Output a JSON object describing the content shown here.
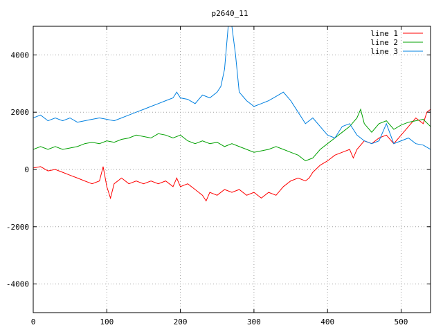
{
  "chart_data": {
    "type": "line",
    "title": "p2640_11",
    "xlabel": "",
    "ylabel": "",
    "xlim": [
      0,
      540
    ],
    "ylim": [
      -5000,
      5000
    ],
    "xticks": [
      0,
      100,
      200,
      300,
      400,
      500
    ],
    "yticks": [
      -4000,
      -2000,
      0,
      2000,
      4000
    ],
    "grid": true,
    "legend_position": "top-right",
    "series": [
      {
        "name": "line 1",
        "color": "#ff0000",
        "points": [
          [
            0,
            50
          ],
          [
            10,
            100
          ],
          [
            20,
            -50
          ],
          [
            30,
            0
          ],
          [
            40,
            -100
          ],
          [
            50,
            -200
          ],
          [
            60,
            -300
          ],
          [
            70,
            -400
          ],
          [
            80,
            -500
          ],
          [
            90,
            -400
          ],
          [
            95,
            100
          ],
          [
            100,
            -600
          ],
          [
            105,
            -1000
          ],
          [
            110,
            -500
          ],
          [
            120,
            -300
          ],
          [
            130,
            -500
          ],
          [
            140,
            -400
          ],
          [
            150,
            -500
          ],
          [
            160,
            -400
          ],
          [
            170,
            -500
          ],
          [
            180,
            -400
          ],
          [
            190,
            -600
          ],
          [
            195,
            -300
          ],
          [
            200,
            -600
          ],
          [
            210,
            -500
          ],
          [
            220,
            -700
          ],
          [
            230,
            -900
          ],
          [
            235,
            -1100
          ],
          [
            240,
            -800
          ],
          [
            250,
            -900
          ],
          [
            260,
            -700
          ],
          [
            270,
            -800
          ],
          [
            280,
            -700
          ],
          [
            290,
            -900
          ],
          [
            300,
            -800
          ],
          [
            310,
            -1000
          ],
          [
            320,
            -800
          ],
          [
            330,
            -900
          ],
          [
            340,
            -600
          ],
          [
            350,
            -400
          ],
          [
            360,
            -300
          ],
          [
            370,
            -400
          ],
          [
            375,
            -300
          ],
          [
            380,
            -100
          ],
          [
            390,
            150
          ],
          [
            400,
            300
          ],
          [
            410,
            500
          ],
          [
            420,
            600
          ],
          [
            430,
            700
          ],
          [
            435,
            400
          ],
          [
            440,
            700
          ],
          [
            450,
            1000
          ],
          [
            460,
            900
          ],
          [
            470,
            1100
          ],
          [
            480,
            1200
          ],
          [
            490,
            900
          ],
          [
            500,
            1200
          ],
          [
            510,
            1500
          ],
          [
            520,
            1800
          ],
          [
            530,
            1600
          ],
          [
            535,
            2000
          ],
          [
            540,
            2100
          ]
        ]
      },
      {
        "name": "line 2",
        "color": "#00a000",
        "points": [
          [
            0,
            700
          ],
          [
            10,
            800
          ],
          [
            20,
            700
          ],
          [
            30,
            800
          ],
          [
            40,
            700
          ],
          [
            50,
            750
          ],
          [
            60,
            800
          ],
          [
            70,
            900
          ],
          [
            80,
            950
          ],
          [
            90,
            900
          ],
          [
            100,
            1000
          ],
          [
            110,
            950
          ],
          [
            120,
            1050
          ],
          [
            130,
            1100
          ],
          [
            140,
            1200
          ],
          [
            150,
            1150
          ],
          [
            160,
            1100
          ],
          [
            170,
            1250
          ],
          [
            180,
            1200
          ],
          [
            190,
            1100
          ],
          [
            200,
            1200
          ],
          [
            210,
            1000
          ],
          [
            220,
            900
          ],
          [
            230,
            1000
          ],
          [
            240,
            900
          ],
          [
            250,
            950
          ],
          [
            260,
            800
          ],
          [
            270,
            900
          ],
          [
            280,
            800
          ],
          [
            290,
            700
          ],
          [
            300,
            600
          ],
          [
            310,
            650
          ],
          [
            320,
            700
          ],
          [
            330,
            800
          ],
          [
            340,
            700
          ],
          [
            350,
            600
          ],
          [
            360,
            500
          ],
          [
            370,
            300
          ],
          [
            380,
            400
          ],
          [
            390,
            700
          ],
          [
            400,
            900
          ],
          [
            410,
            1100
          ],
          [
            420,
            1300
          ],
          [
            430,
            1500
          ],
          [
            440,
            1800
          ],
          [
            445,
            2100
          ],
          [
            450,
            1600
          ],
          [
            460,
            1300
          ],
          [
            470,
            1600
          ],
          [
            480,
            1700
          ],
          [
            490,
            1400
          ],
          [
            500,
            1550
          ],
          [
            510,
            1650
          ],
          [
            520,
            1700
          ],
          [
            530,
            1750
          ],
          [
            540,
            1500
          ]
        ]
      },
      {
        "name": "line 3",
        "color": "#0080e0",
        "points": [
          [
            0,
            1800
          ],
          [
            10,
            1900
          ],
          [
            20,
            1700
          ],
          [
            30,
            1800
          ],
          [
            40,
            1700
          ],
          [
            50,
            1800
          ],
          [
            60,
            1650
          ],
          [
            70,
            1700
          ],
          [
            80,
            1750
          ],
          [
            90,
            1800
          ],
          [
            100,
            1750
          ],
          [
            110,
            1700
          ],
          [
            120,
            1800
          ],
          [
            130,
            1900
          ],
          [
            140,
            2000
          ],
          [
            150,
            2100
          ],
          [
            160,
            2200
          ],
          [
            170,
            2300
          ],
          [
            180,
            2400
          ],
          [
            190,
            2500
          ],
          [
            195,
            2700
          ],
          [
            200,
            2500
          ],
          [
            210,
            2450
          ],
          [
            220,
            2300
          ],
          [
            230,
            2600
          ],
          [
            240,
            2500
          ],
          [
            250,
            2700
          ],
          [
            255,
            2900
          ],
          [
            260,
            3500
          ],
          [
            265,
            5000
          ],
          [
            270,
            5000
          ],
          [
            275,
            4000
          ],
          [
            280,
            2700
          ],
          [
            290,
            2400
          ],
          [
            300,
            2200
          ],
          [
            310,
            2300
          ],
          [
            320,
            2400
          ],
          [
            330,
            2550
          ],
          [
            340,
            2700
          ],
          [
            350,
            2400
          ],
          [
            360,
            2000
          ],
          [
            370,
            1600
          ],
          [
            380,
            1800
          ],
          [
            390,
            1500
          ],
          [
            400,
            1200
          ],
          [
            410,
            1100
          ],
          [
            420,
            1500
          ],
          [
            430,
            1600
          ],
          [
            440,
            1200
          ],
          [
            450,
            1000
          ],
          [
            460,
            900
          ],
          [
            470,
            1000
          ],
          [
            480,
            1600
          ],
          [
            490,
            900
          ],
          [
            500,
            1000
          ],
          [
            510,
            1100
          ],
          [
            520,
            900
          ],
          [
            530,
            850
          ],
          [
            540,
            700
          ]
        ]
      }
    ]
  }
}
